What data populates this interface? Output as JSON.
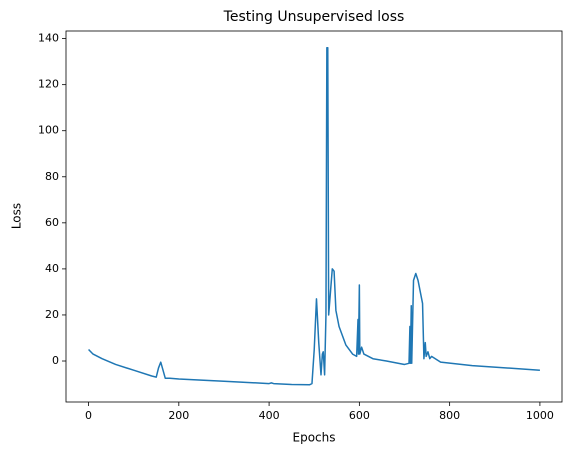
{
  "chart_data": {
    "type": "line",
    "title": "Testing Unsupervised loss",
    "x_label": "Epochs",
    "y_label": "Loss",
    "x": [
      0,
      10,
      30,
      60,
      100,
      140,
      150,
      155,
      160,
      165,
      170,
      180,
      200,
      300,
      400,
      405,
      410,
      450,
      490,
      495,
      500,
      505,
      510,
      515,
      518,
      520,
      523,
      526,
      528,
      530,
      532,
      536,
      540,
      544,
      548,
      555,
      570,
      585,
      594,
      597,
      598,
      600,
      601,
      605,
      610,
      630,
      660,
      700,
      710,
      712,
      713,
      715,
      716,
      720,
      725,
      730,
      740,
      743,
      746,
      748,
      752,
      756,
      760,
      780,
      850,
      1000
    ],
    "values": [
      5,
      3,
      1,
      -1.5,
      -4,
      -6.5,
      -7,
      -3,
      -0.5,
      -4,
      -7.5,
      -7.5,
      -7.8,
      -8.8,
      -9.8,
      -9.5,
      -9.8,
      -10.2,
      -10.3,
      -9.8,
      5,
      27,
      8,
      -6,
      3,
      4,
      -6,
      20,
      136,
      136,
      20,
      30,
      40,
      39,
      22,
      15,
      7,
      3,
      2,
      18,
      3,
      33,
      3,
      6,
      3,
      1,
      0,
      -1.5,
      -1,
      15,
      -1,
      24,
      -1,
      35,
      38,
      35,
      25,
      1,
      8,
      2,
      4,
      1,
      2,
      -0.5,
      -2,
      -4
    ],
    "color": "#1f77b4",
    "xlim": [
      -49.95,
      1048.95
    ],
    "xticks": [
      0,
      200,
      400,
      600,
      800,
      1000
    ],
    "ylim": [
      -17.8,
      143.3
    ],
    "yticks": [
      0,
      20,
      40,
      60,
      80,
      100,
      120,
      140
    ]
  }
}
